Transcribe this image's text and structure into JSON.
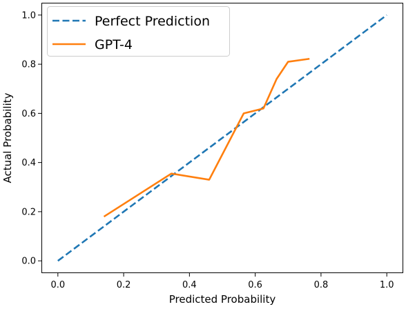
{
  "chart_data": {
    "type": "line",
    "title": "",
    "xlabel": "Predicted Probability",
    "ylabel": "Actual Probability",
    "xlim": [
      -0.05,
      1.05
    ],
    "ylim": [
      -0.05,
      1.05
    ],
    "xticks": [
      0.0,
      0.2,
      0.4,
      0.6,
      0.8,
      1.0
    ],
    "yticks": [
      0.0,
      0.2,
      0.4,
      0.6,
      0.8,
      1.0
    ],
    "xtick_labels": [
      "0.0",
      "0.2",
      "0.4",
      "0.6",
      "0.8",
      "1.0"
    ],
    "ytick_labels": [
      "0.0",
      "0.2",
      "0.4",
      "0.6",
      "0.8",
      "1.0"
    ],
    "grid": false,
    "legend_position": "top-left",
    "series": [
      {
        "name": "Perfect Prediction",
        "color": "#1f77b4",
        "style": "dashed",
        "x": [
          0.0,
          1.0
        ],
        "y": [
          0.0,
          1.0
        ]
      },
      {
        "name": "GPT-4",
        "color": "#ff7f0e",
        "style": "solid",
        "x": [
          0.14,
          0.345,
          0.46,
          0.565,
          0.625,
          0.665,
          0.7,
          0.765
        ],
        "y": [
          0.18,
          0.355,
          0.33,
          0.6,
          0.62,
          0.74,
          0.81,
          0.822
        ]
      }
    ]
  }
}
